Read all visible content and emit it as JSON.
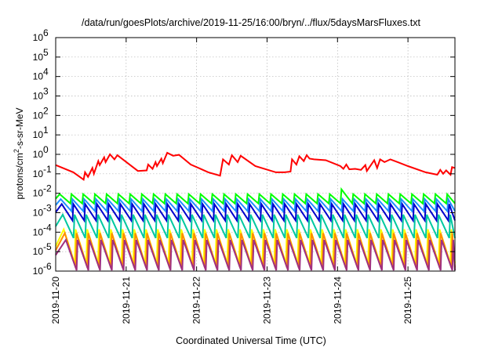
{
  "chart_data": {
    "type": "line",
    "title": "/data/run/goesPlots/archive/2019-11-25/16:00/bryn/../flux/5daysMarsFluxes.txt",
    "xlabel": "Coordinated Universal Time (UTC)",
    "ylabel": "protons/cm²-s-sr-MeV",
    "y_scale": "log",
    "ylim": [
      1e-06,
      1000000.0
    ],
    "y_ticks": [
      {
        "base": "10",
        "exp": "-6",
        "value": 1e-06
      },
      {
        "base": "10",
        "exp": "-5",
        "value": 1e-05
      },
      {
        "base": "10",
        "exp": "-4",
        "value": 0.0001
      },
      {
        "base": "10",
        "exp": "-3",
        "value": 0.001
      },
      {
        "base": "10",
        "exp": "-2",
        "value": 0.01
      },
      {
        "base": "10",
        "exp": "-1",
        "value": 0.1
      },
      {
        "base": "10",
        "exp": "0",
        "value": 1
      },
      {
        "base": "10",
        "exp": "1",
        "value": 10
      },
      {
        "base": "10",
        "exp": "2",
        "value": 100
      },
      {
        "base": "10",
        "exp": "3",
        "value": 1000
      },
      {
        "base": "10",
        "exp": "4",
        "value": 10000
      },
      {
        "base": "10",
        "exp": "5",
        "value": 100000
      },
      {
        "base": "10",
        "exp": "6",
        "value": 1000000
      }
    ],
    "xlim": [
      "2019-11-20",
      "2019-11-25 16:00"
    ],
    "x_ticks": [
      "2019-11-20",
      "2019-11-21",
      "2019-11-22",
      "2019-11-23",
      "2019-11-24",
      "2019-11-25"
    ],
    "grid": true,
    "legend": "none",
    "series_colors": [
      "#ff0000",
      "#00ff00",
      "#1e90ff",
      "#0000cd",
      "#00c8a0",
      "#ffff00",
      "#ff8c00",
      "#a03080"
    ],
    "series": [
      {
        "color": "#ff0000",
        "values": [
          [
            "2019-11-20 00:00",
            0.28
          ],
          [
            "2019-11-20 06:00",
            0.12
          ],
          [
            "2019-11-20 09:30",
            0.05
          ],
          [
            "2019-11-20 10:00",
            0.12
          ],
          [
            "2019-11-20 11:00",
            0.07
          ],
          [
            "2019-11-20 12:30",
            0.2
          ],
          [
            "2019-11-20 13:00",
            0.1
          ],
          [
            "2019-11-20 14:30",
            0.45
          ],
          [
            "2019-11-20 15:00",
            0.28
          ],
          [
            "2019-11-20 16:30",
            0.7
          ],
          [
            "2019-11-20 17:00",
            0.4
          ],
          [
            "2019-11-20 18:30",
            1.0
          ],
          [
            "2019-11-20 20:00",
            0.55
          ],
          [
            "2019-11-20 21:00",
            0.9
          ],
          [
            "2019-11-21 04:00",
            0.14
          ],
          [
            "2019-11-21 07:00",
            0.15
          ],
          [
            "2019-11-21 07:30",
            0.3
          ],
          [
            "2019-11-21 09:00",
            0.18
          ],
          [
            "2019-11-21 10:00",
            0.4
          ],
          [
            "2019-11-21 10:30",
            0.25
          ],
          [
            "2019-11-21 12:00",
            0.6
          ],
          [
            "2019-11-21 12:30",
            0.35
          ],
          [
            "2019-11-21 14:00",
            1.2
          ],
          [
            "2019-11-21 16:00",
            0.85
          ],
          [
            "2019-11-21 18:00",
            0.95
          ],
          [
            "2019-11-21 22:00",
            0.3
          ],
          [
            "2019-11-22 04:00",
            0.12
          ],
          [
            "2019-11-22 08:00",
            0.08
          ],
          [
            "2019-11-22 09:00",
            0.55
          ],
          [
            "2019-11-22 11:00",
            0.3
          ],
          [
            "2019-11-22 12:00",
            0.9
          ],
          [
            "2019-11-22 14:00",
            0.4
          ],
          [
            "2019-11-22 15:00",
            0.85
          ],
          [
            "2019-11-22 20:00",
            0.25
          ],
          [
            "2019-11-23 03:00",
            0.12
          ],
          [
            "2019-11-23 06:00",
            0.12
          ],
          [
            "2019-11-23 08:00",
            0.13
          ],
          [
            "2019-11-23 08:30",
            0.55
          ],
          [
            "2019-11-23 10:00",
            0.3
          ],
          [
            "2019-11-23 11:00",
            0.8
          ],
          [
            "2019-11-23 12:30",
            0.45
          ],
          [
            "2019-11-23 13:30",
            0.9
          ],
          [
            "2019-11-23 14:30",
            0.6
          ],
          [
            "2019-11-23 16:00",
            0.55
          ],
          [
            "2019-11-23 20:00",
            0.5
          ],
          [
            "2019-11-24 01:00",
            0.25
          ],
          [
            "2019-11-24 02:00",
            0.18
          ],
          [
            "2019-11-24 03:00",
            0.3
          ],
          [
            "2019-11-24 04:00",
            0.17
          ],
          [
            "2019-11-24 06:00",
            0.18
          ],
          [
            "2019-11-24 08:00",
            0.16
          ],
          [
            "2019-11-24 09:30",
            0.28
          ],
          [
            "2019-11-24 10:00",
            0.14
          ],
          [
            "2019-11-24 12:30",
            0.5
          ],
          [
            "2019-11-24 13:30",
            0.2
          ],
          [
            "2019-11-24 14:30",
            0.55
          ],
          [
            "2019-11-24 16:00",
            0.4
          ],
          [
            "2019-11-24 18:00",
            0.55
          ],
          [
            "2019-11-25 00:00",
            0.25
          ],
          [
            "2019-11-25 06:00",
            0.12
          ],
          [
            "2019-11-25 10:00",
            0.09
          ],
          [
            "2019-11-25 11:00",
            0.16
          ],
          [
            "2019-11-25 12:00",
            0.1
          ],
          [
            "2019-11-25 13:00",
            0.15
          ],
          [
            "2019-11-25 14:30",
            0.09
          ],
          [
            "2019-11-25 15:00",
            0.22
          ],
          [
            "2019-11-25 16:00",
            0.2
          ]
        ]
      },
      {
        "color": "#00ff00",
        "pattern": "sawtooth",
        "period_hours": 4,
        "high": 0.009,
        "low": 0.003,
        "start": "2019-11-20 00:00",
        "end": "2019-11-25 16:00",
        "bumps": [
          [
            "2019-11-24 02:00",
            0.016
          ]
        ]
      },
      {
        "color": "#1e90ff",
        "pattern": "sawtooth",
        "period_hours": 4,
        "high": 0.005,
        "low": 0.0012,
        "start": "2019-11-20 00:00",
        "end": "2019-11-25 16:00"
      },
      {
        "color": "#0000cd",
        "pattern": "sawtooth",
        "period_hours": 4,
        "high": 0.0028,
        "low": 0.0004,
        "start": "2019-11-20 00:00",
        "end": "2019-11-25 16:00"
      },
      {
        "color": "#00c8a0",
        "pattern": "sawtooth",
        "period_hours": 4,
        "high": 0.0008,
        "low": 5e-05,
        "start": "2019-11-20 00:00",
        "end": "2019-11-25 16:00"
      },
      {
        "color": "#ffff00",
        "pattern": "sawtooth",
        "period_hours": 4,
        "high": 0.00014,
        "low": 2.5e-06,
        "start": "2019-11-20 00:00",
        "end": "2019-11-25 16:00"
      },
      {
        "color": "#ff8c00",
        "pattern": "sawtooth",
        "period_hours": 4,
        "high": 9e-05,
        "low": 1.5e-06,
        "start": "2019-11-20 00:00",
        "end": "2019-11-25 16:00"
      },
      {
        "color": "#a03080",
        "pattern": "sawtooth",
        "period_hours": 4,
        "high": 4e-05,
        "low": 1.1e-06,
        "start": "2019-11-20 00:00",
        "end": "2019-11-25 16:00"
      }
    ]
  }
}
